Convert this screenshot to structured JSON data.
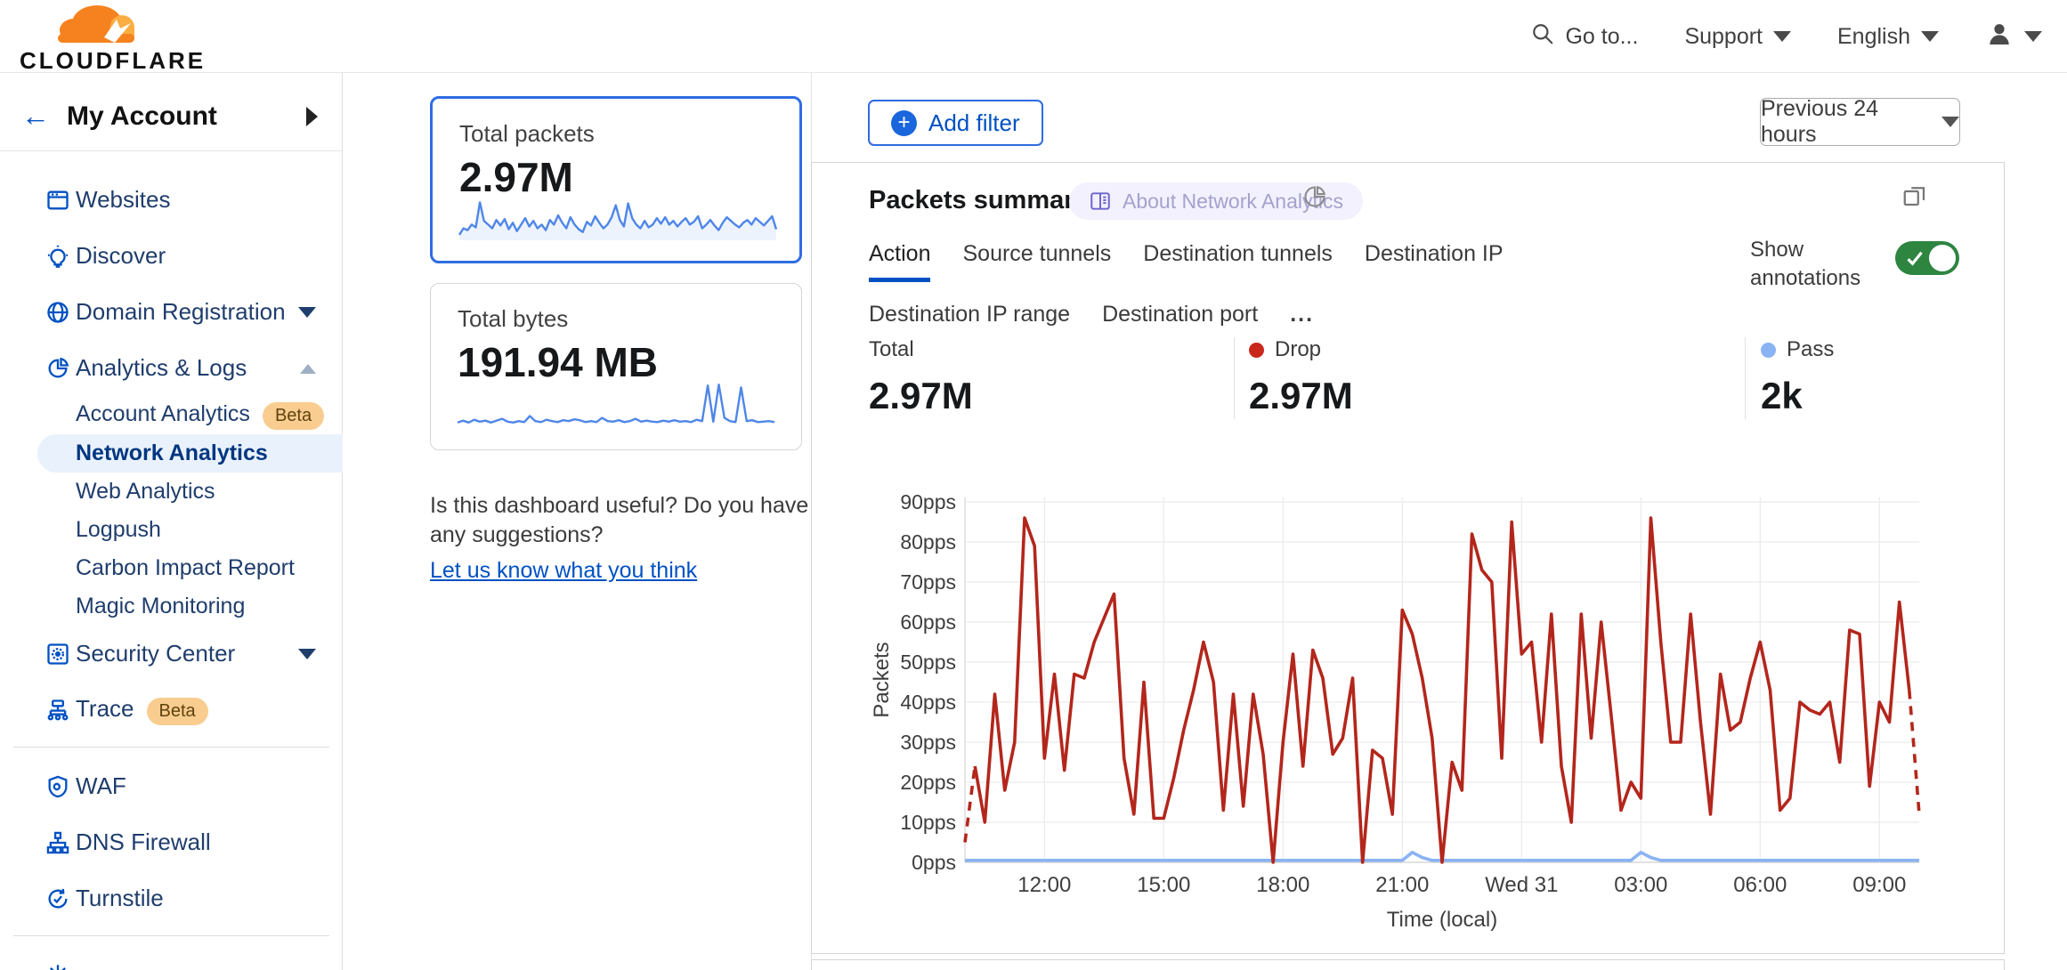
{
  "header": {
    "brand": "CLOUDFLARE",
    "goto_label": "Go to...",
    "support_label": "Support",
    "language_label": "English"
  },
  "sidebar": {
    "account_label": "My Account",
    "sections": [
      {
        "items": [
          {
            "label": "Websites",
            "icon": "browser-icon"
          },
          {
            "label": "Discover",
            "icon": "lightbulb-icon"
          },
          {
            "label": "Domain Registration",
            "icon": "globe-icon",
            "chevron": "down"
          },
          {
            "label": "Analytics & Logs",
            "icon": "pie-chart-icon",
            "chevron": "up",
            "children": [
              {
                "label": "Account Analytics",
                "badge": "Beta"
              },
              {
                "label": "Network Analytics",
                "selected": true
              },
              {
                "label": "Web Analytics"
              },
              {
                "label": "Logpush"
              },
              {
                "label": "Carbon Impact Report"
              },
              {
                "label": "Magic Monitoring"
              }
            ]
          },
          {
            "label": "Security Center",
            "icon": "safe-icon",
            "chevron": "down"
          },
          {
            "label": "Trace",
            "icon": "trace-icon",
            "badge": "Beta"
          }
        ]
      },
      {
        "items": [
          {
            "label": "WAF",
            "icon": "shield-gear-icon"
          },
          {
            "label": "DNS Firewall",
            "icon": "hierarchy-icon"
          },
          {
            "label": "Turnstile",
            "icon": "rotate-check-icon"
          }
        ]
      },
      {
        "items": [
          {
            "label": "",
            "icon": "spark-icon"
          }
        ]
      }
    ]
  },
  "summary_cards": {
    "packets": {
      "title": "Total packets",
      "value": "2.97M",
      "selected": true
    },
    "bytes": {
      "title": "Total bytes",
      "value": "191.94 MB",
      "selected": false
    }
  },
  "feedback": {
    "question": "Is this dashboard useful? Do you have any suggestions?",
    "link": "Let us know what you think"
  },
  "toolbar": {
    "add_filter_label": "Add filter",
    "time_range_label": "Previous 24 hours"
  },
  "panel": {
    "title": "Packets summary",
    "about_badge": "About Network Analytics",
    "tabs": [
      "Action",
      "Source tunnels",
      "Destination tunnels",
      "Destination IP",
      "Destination IP range",
      "Destination port"
    ],
    "active_tab": "Action",
    "more_tabs_label": "...",
    "annotations_label": "Show annotations",
    "annotations_on": true,
    "stats": [
      {
        "label": "Total",
        "value": "2.97M",
        "dot_color": null
      },
      {
        "label": "Drop",
        "value": "2.97M",
        "dot_color": "#c9281d"
      },
      {
        "label": "Pass",
        "value": "2k",
        "dot_color": "#8ab3f3"
      }
    ]
  },
  "colors": {
    "accent_blue": "#0051c3",
    "drop_red": "#b3261c",
    "pass_blue": "#8ab3f3",
    "toggle_green": "#2d8540",
    "sparkline_blue": "#4f86e8"
  },
  "chart_data": {
    "type": "line",
    "title": "Packets summary",
    "xlabel": "Time (local)",
    "ylabel": "Packets",
    "ylim": [
      0,
      90
    ],
    "y_ticks": [
      "0pps",
      "10pps",
      "20pps",
      "30pps",
      "40pps",
      "50pps",
      "60pps",
      "70pps",
      "80pps",
      "90pps"
    ],
    "x_ticks": [
      "12:00",
      "15:00",
      "18:00",
      "21:00",
      "Wed 31",
      "03:00",
      "06:00",
      "09:00"
    ],
    "x_tick_indices": [
      8,
      20,
      32,
      44,
      56,
      68,
      80,
      92
    ],
    "x_range_note": "Previous 24 hours, 15-minute intervals, dashed at both ends",
    "grid": true,
    "legend_position": "above-as-stats",
    "series": [
      {
        "name": "Drop",
        "color": "#b3261c",
        "dashed_ends": true,
        "unit": "pps",
        "values": [
          5,
          24,
          10,
          42,
          18,
          30,
          86,
          79,
          26,
          47,
          23,
          47,
          46,
          55,
          61,
          67,
          26,
          12,
          45,
          11,
          11,
          21,
          33,
          43,
          55,
          45,
          13,
          42,
          14,
          42,
          27,
          0,
          30,
          52,
          24,
          53,
          46,
          27,
          31,
          46,
          0,
          28,
          26,
          12,
          63,
          57,
          46,
          31,
          0,
          25,
          18,
          82,
          73,
          70,
          26,
          85,
          52,
          55,
          30,
          62,
          24,
          10,
          62,
          31,
          60,
          37,
          13,
          20,
          16,
          86,
          55,
          30,
          30,
          62,
          35,
          12,
          47,
          33,
          35,
          46,
          55,
          43,
          13,
          16,
          40,
          38,
          37,
          40,
          25,
          58,
          57,
          19,
          40,
          35,
          65,
          43,
          12
        ]
      },
      {
        "name": "Pass",
        "color": "#8ab3f3",
        "dashed_ends": false,
        "unit": "pps",
        "values": [
          0.5,
          0.5,
          0.5,
          0.5,
          0.5,
          0.5,
          0.5,
          0.5,
          0.5,
          0.5,
          0.5,
          0.5,
          0.5,
          0.5,
          0.5,
          0.5,
          0.5,
          0.5,
          0.5,
          0.5,
          0.5,
          0.5,
          0.5,
          0.5,
          0.5,
          0.5,
          0.5,
          0.5,
          0.5,
          0.5,
          0.5,
          0.5,
          0.5,
          0.5,
          0.5,
          0.5,
          0.5,
          0.5,
          0.5,
          0.5,
          0.5,
          0.5,
          0.5,
          0.5,
          0.5,
          2.5,
          1.2,
          0.5,
          0.5,
          0.5,
          0.5,
          0.5,
          0.5,
          0.5,
          0.5,
          0.5,
          0.5,
          0.5,
          0.5,
          0.5,
          0.5,
          0.5,
          0.5,
          0.5,
          0.5,
          0.5,
          0.5,
          0.5,
          2.5,
          1.2,
          0.5,
          0.5,
          0.5,
          0.5,
          0.5,
          0.5,
          0.5,
          0.5,
          0.5,
          0.5,
          0.5,
          0.5,
          0.5,
          0.5,
          0.5,
          0.5,
          0.5,
          0.5,
          0.5,
          0.5,
          0.5,
          0.5,
          0.5,
          0.5,
          0.5,
          0.5,
          0.5
        ]
      }
    ]
  },
  "sparklines": {
    "packets": {
      "color": "#4f86e8",
      "values": [
        8,
        22,
        18,
        30,
        24,
        78,
        38,
        30,
        22,
        40,
        28,
        42,
        20,
        34,
        16,
        30,
        44,
        26,
        38,
        22,
        30,
        18,
        40,
        30,
        50,
        34,
        22,
        46,
        30,
        20,
        14,
        36,
        28,
        48,
        34,
        22,
        30,
        46,
        72,
        40,
        26,
        76,
        44,
        30,
        22,
        38,
        24,
        30,
        44,
        32,
        46,
        30,
        38,
        26,
        36,
        44,
        30,
        36,
        48,
        22,
        30,
        40,
        28,
        18,
        34,
        46,
        38,
        30,
        24,
        34,
        40,
        30,
        44,
        36,
        28,
        38,
        48,
        20
      ]
    },
    "bytes": {
      "color": "#4f86e8",
      "values": [
        10,
        14,
        10,
        16,
        12,
        14,
        10,
        14,
        18,
        12,
        10,
        13,
        11,
        24,
        13,
        11,
        16,
        13,
        11,
        15,
        13,
        17,
        15,
        11,
        13,
        11,
        20,
        13,
        12,
        15,
        11,
        13,
        18,
        12,
        14,
        12,
        11,
        14,
        12,
        15,
        12,
        13,
        11,
        16,
        13,
        90,
        12,
        92,
        20,
        13,
        11,
        86,
        13,
        15,
        11,
        12,
        13,
        11
      ]
    }
  }
}
